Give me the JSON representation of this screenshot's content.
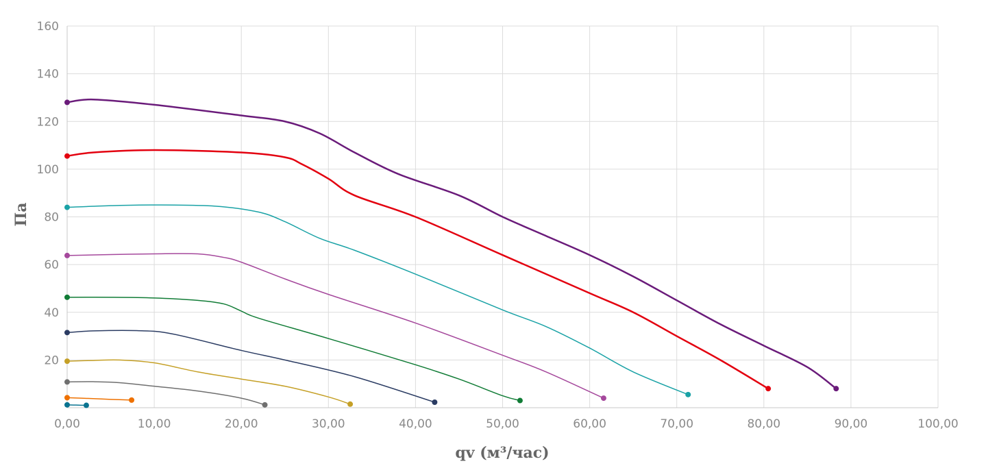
{
  "chart_data": {
    "type": "line",
    "title": "",
    "xlabel": "qv (м³/час)",
    "ylabel": "Па",
    "xlim": [
      0,
      100
    ],
    "ylim": [
      0,
      160
    ],
    "x_ticks": [
      "0,00",
      "10,00",
      "20,00",
      "30,00",
      "40,00",
      "50,00",
      "60,00",
      "70,00",
      "80,00",
      "90,00",
      "100,00"
    ],
    "y_ticks": [
      "20",
      "40",
      "60",
      "80",
      "100",
      "120",
      "140",
      "160"
    ],
    "grid": true,
    "legend": "none",
    "series": [
      {
        "color": "#6a1b7a",
        "width": 2.5,
        "points": [
          [
            0,
            128
          ],
          [
            3,
            129.2
          ],
          [
            10,
            127
          ],
          [
            20,
            122.5
          ],
          [
            25,
            120
          ],
          [
            29,
            115
          ],
          [
            33,
            107
          ],
          [
            38,
            98
          ],
          [
            45,
            89
          ],
          [
            50,
            80
          ],
          [
            55,
            72
          ],
          [
            60,
            64
          ],
          [
            65,
            55
          ],
          [
            70,
            45
          ],
          [
            75,
            35
          ],
          [
            80,
            26
          ],
          [
            85,
            17
          ],
          [
            88.3,
            8
          ]
        ]
      },
      {
        "color": "#e3000f",
        "width": 2.5,
        "points": [
          [
            0,
            105.5
          ],
          [
            3,
            107
          ],
          [
            10,
            108
          ],
          [
            20,
            107
          ],
          [
            25,
            105
          ],
          [
            27,
            102
          ],
          [
            30,
            96
          ],
          [
            33,
            89
          ],
          [
            40,
            80
          ],
          [
            50,
            64
          ],
          [
            60,
            48
          ],
          [
            65,
            40
          ],
          [
            70,
            30
          ],
          [
            75,
            20
          ],
          [
            80.5,
            8
          ]
        ]
      },
      {
        "color": "#1aa2a6",
        "width": 1.5,
        "points": [
          [
            0,
            84
          ],
          [
            5,
            84.7
          ],
          [
            10,
            85
          ],
          [
            17,
            84.5
          ],
          [
            22,
            82
          ],
          [
            25,
            78
          ],
          [
            29,
            71
          ],
          [
            33,
            66
          ],
          [
            40,
            56
          ],
          [
            50,
            41
          ],
          [
            55,
            34
          ],
          [
            60,
            25
          ],
          [
            65,
            15
          ],
          [
            71.3,
            5.5
          ]
        ]
      },
      {
        "color": "#a5489c",
        "width": 1.5,
        "points": [
          [
            0,
            63.8
          ],
          [
            5,
            64.2
          ],
          [
            10,
            64.5
          ],
          [
            15,
            64.5
          ],
          [
            18,
            63
          ],
          [
            20,
            61
          ],
          [
            25,
            54
          ],
          [
            30,
            47.5
          ],
          [
            40,
            35.5
          ],
          [
            50,
            22
          ],
          [
            55,
            15
          ],
          [
            61.6,
            4
          ]
        ]
      },
      {
        "color": "#117c36",
        "width": 1.5,
        "points": [
          [
            0,
            46.3
          ],
          [
            5,
            46.3
          ],
          [
            10,
            46
          ],
          [
            15,
            45
          ],
          [
            18,
            43.5
          ],
          [
            20,
            40.5
          ],
          [
            22,
            37.5
          ],
          [
            30,
            29
          ],
          [
            40,
            18
          ],
          [
            45,
            12
          ],
          [
            50,
            5
          ],
          [
            52,
            3
          ]
        ]
      },
      {
        "color": "#2b3c63",
        "width": 1.5,
        "points": [
          [
            0,
            31.5
          ],
          [
            3,
            32.2
          ],
          [
            8,
            32.3
          ],
          [
            12,
            31
          ],
          [
            20,
            24
          ],
          [
            25,
            20
          ],
          [
            33,
            13
          ],
          [
            42.2,
            2.3
          ]
        ]
      },
      {
        "color": "#c5a027",
        "width": 1.5,
        "points": [
          [
            0,
            19.5
          ],
          [
            3,
            19.8
          ],
          [
            6,
            20
          ],
          [
            10,
            18.8
          ],
          [
            15,
            15
          ],
          [
            20,
            12
          ],
          [
            25,
            9
          ],
          [
            30,
            4.5
          ],
          [
            32.5,
            1.5
          ]
        ]
      },
      {
        "color": "#6f6f6f",
        "width": 1.5,
        "points": [
          [
            0,
            10.8
          ],
          [
            3,
            10.9
          ],
          [
            6,
            10.5
          ],
          [
            10,
            9
          ],
          [
            15,
            7
          ],
          [
            20,
            4
          ],
          [
            22.7,
            1.2
          ]
        ]
      },
      {
        "color": "#ee7100",
        "width": 1.5,
        "points": [
          [
            0,
            4.2
          ],
          [
            3,
            3.8
          ],
          [
            5,
            3.5
          ],
          [
            7.4,
            3.2
          ]
        ]
      },
      {
        "color": "#0a7390",
        "width": 1.5,
        "points": [
          [
            0,
            1.2
          ],
          [
            1,
            1.1
          ],
          [
            2.2,
            1.0
          ]
        ]
      }
    ]
  }
}
